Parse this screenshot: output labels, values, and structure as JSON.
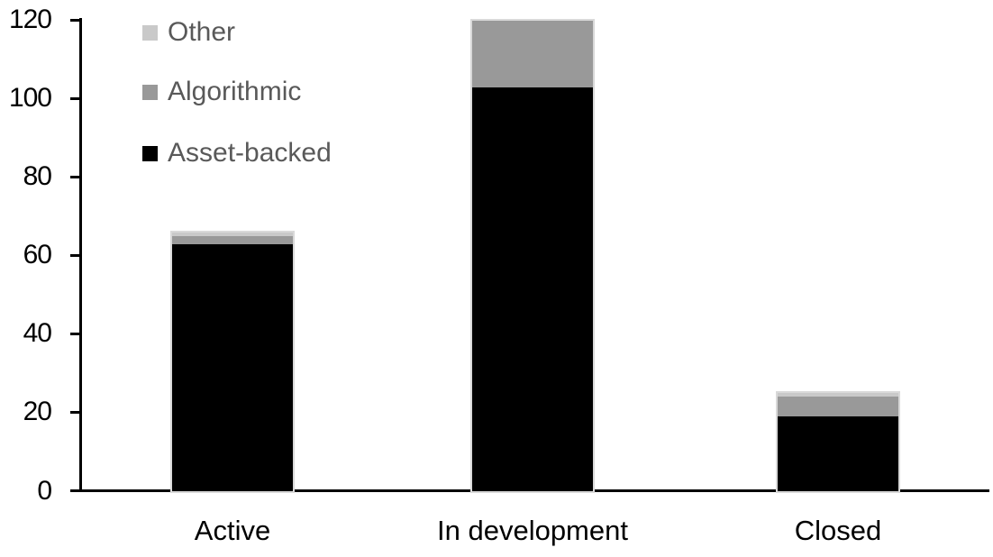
{
  "chart_data": {
    "type": "bar",
    "stacked": true,
    "title": "",
    "xlabel": "",
    "ylabel": "",
    "categories": [
      "Active",
      "In development",
      "Closed"
    ],
    "series": [
      {
        "name": "Asset-backed",
        "color": "#000000",
        "values": [
          63,
          103,
          19
        ]
      },
      {
        "name": "Algorithmic",
        "color": "#999999",
        "values": [
          2,
          17,
          5
        ]
      },
      {
        "name": "Other",
        "color": "#c9c9c9",
        "values": [
          1,
          0,
          1
        ]
      }
    ],
    "totals": [
      66,
      120,
      25
    ],
    "ylim": [
      0,
      120
    ],
    "ytick_step": 20,
    "ytick_labels": [
      "0",
      "20",
      "40",
      "60",
      "80",
      "100",
      "120"
    ],
    "grid": false,
    "legend_position": "top-left",
    "legend_order": [
      "Other",
      "Algorithmic",
      "Asset-backed"
    ],
    "legend_text_color": "#595959",
    "axis_color": "#000000",
    "background_color": "#ffffff"
  }
}
